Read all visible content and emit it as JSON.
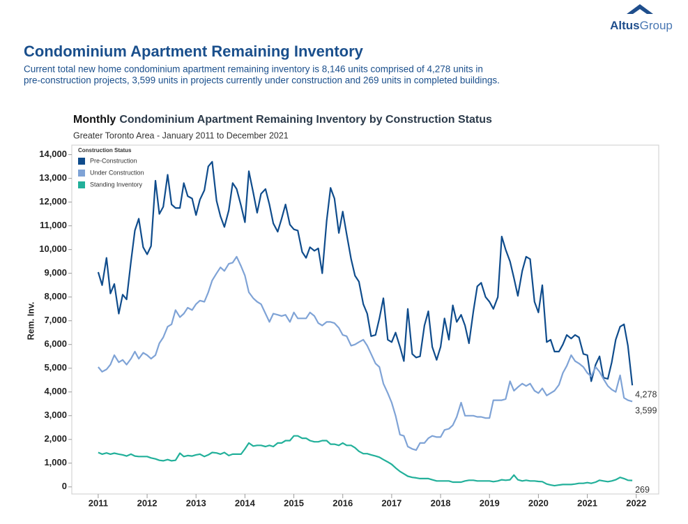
{
  "logo": {
    "name_bold": "Altus",
    "name": "Group"
  },
  "header": {
    "title": "Condominium Apartment Remaining Inventory",
    "lines": [
      "Current total new home condominium apartment remaining inventory is 8,146 units comprised of 4,278 units in",
      "pre-construction projects, 3,599 units in projects currently under construction and 269 units in completed buildings."
    ]
  },
  "chart_data": {
    "type": "line",
    "title_bold": "Monthly",
    "title": "Condominium Apartment Remaining Inventory by Construction Status",
    "subtitle": "Greater Toronto Area - January 2011 to December 2021",
    "y_label": "Rem. Inv.",
    "legend_title": "Construction Status",
    "legend": "upper left",
    "xlim": [
      2010.46,
      2022.46
    ],
    "xticks": [
      2011,
      2012,
      2013,
      2014,
      2015,
      2016,
      2017,
      2018,
      2019,
      2020,
      2021,
      2022
    ],
    "ylim": [
      -300,
      14400
    ],
    "yticks": [
      0,
      {
        "value": 1000,
        "label": "1,000"
      },
      {
        "value": 2000,
        "label": "2,000"
      },
      {
        "value": 3000,
        "label": "3,000"
      },
      {
        "value": 4000,
        "label": "4,000"
      },
      {
        "value": 5000,
        "label": "5,000"
      },
      {
        "value": 6000,
        "label": "6,000"
      },
      {
        "value": 7000,
        "label": "7,000"
      },
      {
        "value": 8000,
        "label": "8,000"
      },
      {
        "value": 9000,
        "label": "9,000"
      },
      {
        "value": 10000,
        "label": "10,000"
      },
      {
        "value": 11000,
        "label": "11,000"
      },
      {
        "value": 12000,
        "label": "12,000"
      },
      {
        "value": 13000,
        "label": "13,000"
      },
      {
        "value": 14000,
        "label": "14,000"
      }
    ],
    "x": [
      2011,
      2011.08,
      2011.17,
      2011.25,
      2011.33,
      2011.42,
      2011.5,
      2011.58,
      2011.67,
      2011.75,
      2011.83,
      2011.92,
      2012,
      2012.08,
      2012.17,
      2012.25,
      2012.33,
      2012.42,
      2012.5,
      2012.58,
      2012.67,
      2012.75,
      2012.83,
      2012.92,
      2013,
      2013.08,
      2013.17,
      2013.25,
      2013.33,
      2013.42,
      2013.5,
      2013.58,
      2013.67,
      2013.75,
      2013.83,
      2013.92,
      2014,
      2014.08,
      2014.17,
      2014.25,
      2014.33,
      2014.42,
      2014.5,
      2014.58,
      2014.67,
      2014.75,
      2014.83,
      2014.92,
      2015,
      2015.08,
      2015.17,
      2015.25,
      2015.33,
      2015.42,
      2015.5,
      2015.58,
      2015.67,
      2015.75,
      2015.83,
      2015.92,
      2016,
      2016.08,
      2016.17,
      2016.25,
      2016.33,
      2016.42,
      2016.5,
      2016.58,
      2016.67,
      2016.75,
      2016.83,
      2016.92,
      2017,
      2017.08,
      2017.17,
      2017.25,
      2017.33,
      2017.42,
      2017.5,
      2017.58,
      2017.67,
      2017.75,
      2017.83,
      2017.92,
      2018,
      2018.08,
      2018.17,
      2018.25,
      2018.33,
      2018.42,
      2018.5,
      2018.58,
      2018.67,
      2018.75,
      2018.83,
      2018.92,
      2019,
      2019.08,
      2019.17,
      2019.25,
      2019.33,
      2019.42,
      2019.5,
      2019.58,
      2019.67,
      2019.75,
      2019.83,
      2019.92,
      2020,
      2020.08,
      2020.17,
      2020.25,
      2020.33,
      2020.42,
      2020.5,
      2020.58,
      2020.67,
      2020.75,
      2020.83,
      2020.92,
      2021,
      2021.08,
      2021.17,
      2021.25,
      2021.33,
      2021.42,
      2021.5,
      2021.58,
      2021.67,
      2021.75,
      2021.83,
      2021.92
    ],
    "series": [
      {
        "name": "Pre-Construction",
        "color": "#0f4c8c",
        "last_label": "4,278",
        "values": [
          9050,
          8500,
          9650,
          8150,
          8550,
          7300,
          8100,
          7900,
          9500,
          10800,
          11300,
          10100,
          9800,
          10150,
          12900,
          11500,
          11800,
          13150,
          11900,
          11750,
          11750,
          12800,
          12250,
          12150,
          11450,
          12100,
          12500,
          13500,
          13700,
          12050,
          11400,
          10950,
          11650,
          12800,
          12550,
          11850,
          11150,
          13300,
          12400,
          11550,
          12350,
          12550,
          11900,
          11100,
          10750,
          11300,
          11900,
          11050,
          10850,
          10800,
          9900,
          9650,
          10100,
          9950,
          10050,
          9000,
          11200,
          12600,
          12150,
          10700,
          11600,
          10650,
          9600,
          8900,
          8650,
          7700,
          7300,
          6350,
          6400,
          7100,
          7950,
          6200,
          6100,
          6500,
          5900,
          5300,
          7500,
          5600,
          5450,
          5500,
          6800,
          7400,
          5900,
          5350,
          5900,
          7100,
          6200,
          7650,
          6950,
          7250,
          6800,
          6050,
          7400,
          8450,
          8600,
          8000,
          7800,
          7500,
          8000,
          10550,
          10000,
          9500,
          8800,
          8050,
          9100,
          9700,
          9600,
          7800,
          7350,
          8500,
          6100,
          6200,
          5700,
          5700,
          6000,
          6400,
          6250,
          6400,
          6300,
          5600,
          5550,
          4450,
          5150,
          5500,
          4600,
          4550,
          5250,
          6200,
          6750,
          6850,
          5950,
          4278
        ]
      },
      {
        "name": "Under Construction",
        "color": "#7fa3d6",
        "last_label": "3,599",
        "values": [
          5050,
          4850,
          4950,
          5150,
          5550,
          5250,
          5350,
          5150,
          5400,
          5700,
          5400,
          5650,
          5550,
          5400,
          5550,
          6050,
          6300,
          6750,
          6850,
          7450,
          7150,
          7300,
          7550,
          7450,
          7700,
          7850,
          7800,
          8200,
          8700,
          9000,
          9250,
          9100,
          9400,
          9450,
          9700,
          9300,
          8900,
          8200,
          7950,
          7800,
          7700,
          7300,
          6950,
          7300,
          7250,
          7200,
          7250,
          6950,
          7350,
          7100,
          7100,
          7100,
          7350,
          7200,
          6900,
          6800,
          6950,
          6950,
          6900,
          6700,
          6400,
          6350,
          5950,
          6000,
          6100,
          6200,
          5950,
          5600,
          5200,
          5050,
          4350,
          3950,
          3550,
          3000,
          2200,
          2150,
          1700,
          1600,
          1550,
          1850,
          1850,
          2050,
          2150,
          2100,
          2100,
          2400,
          2450,
          2600,
          2950,
          3550,
          3000,
          3000,
          3000,
          2950,
          2950,
          2900,
          2900,
          3650,
          3650,
          3650,
          3700,
          4450,
          4050,
          4200,
          4350,
          4250,
          4350,
          4050,
          3950,
          4150,
          3850,
          3950,
          4050,
          4300,
          4800,
          5100,
          5550,
          5300,
          5200,
          5050,
          4800,
          4650,
          5050,
          4850,
          4550,
          4250,
          4100,
          4000,
          4700,
          3750,
          3650,
          3599
        ]
      },
      {
        "name": "Standing Inventory",
        "color": "#22b09a",
        "last_label": "269",
        "values": [
          1450,
          1380,
          1430,
          1380,
          1420,
          1380,
          1350,
          1300,
          1380,
          1300,
          1280,
          1280,
          1280,
          1220,
          1180,
          1120,
          1100,
          1150,
          1100,
          1120,
          1420,
          1280,
          1320,
          1300,
          1350,
          1380,
          1280,
          1350,
          1450,
          1430,
          1380,
          1450,
          1320,
          1380,
          1380,
          1380,
          1600,
          1850,
          1720,
          1750,
          1750,
          1700,
          1750,
          1700,
          1850,
          1850,
          1950,
          1950,
          2150,
          2150,
          2050,
          2050,
          1950,
          1900,
          1900,
          1950,
          1950,
          1800,
          1800,
          1750,
          1850,
          1750,
          1750,
          1650,
          1500,
          1400,
          1400,
          1350,
          1300,
          1250,
          1150,
          1050,
          950,
          800,
          650,
          550,
          450,
          400,
          380,
          350,
          350,
          350,
          300,
          250,
          250,
          250,
          250,
          200,
          200,
          200,
          250,
          280,
          280,
          250,
          250,
          250,
          250,
          220,
          250,
          300,
          280,
          300,
          500,
          300,
          250,
          280,
          250,
          250,
          230,
          220,
          120,
          80,
          50,
          80,
          100,
          100,
          100,
          120,
          150,
          150,
          180,
          150,
          200,
          280,
          250,
          220,
          250,
          300,
          400,
          350,
          280,
          269
        ]
      }
    ]
  }
}
